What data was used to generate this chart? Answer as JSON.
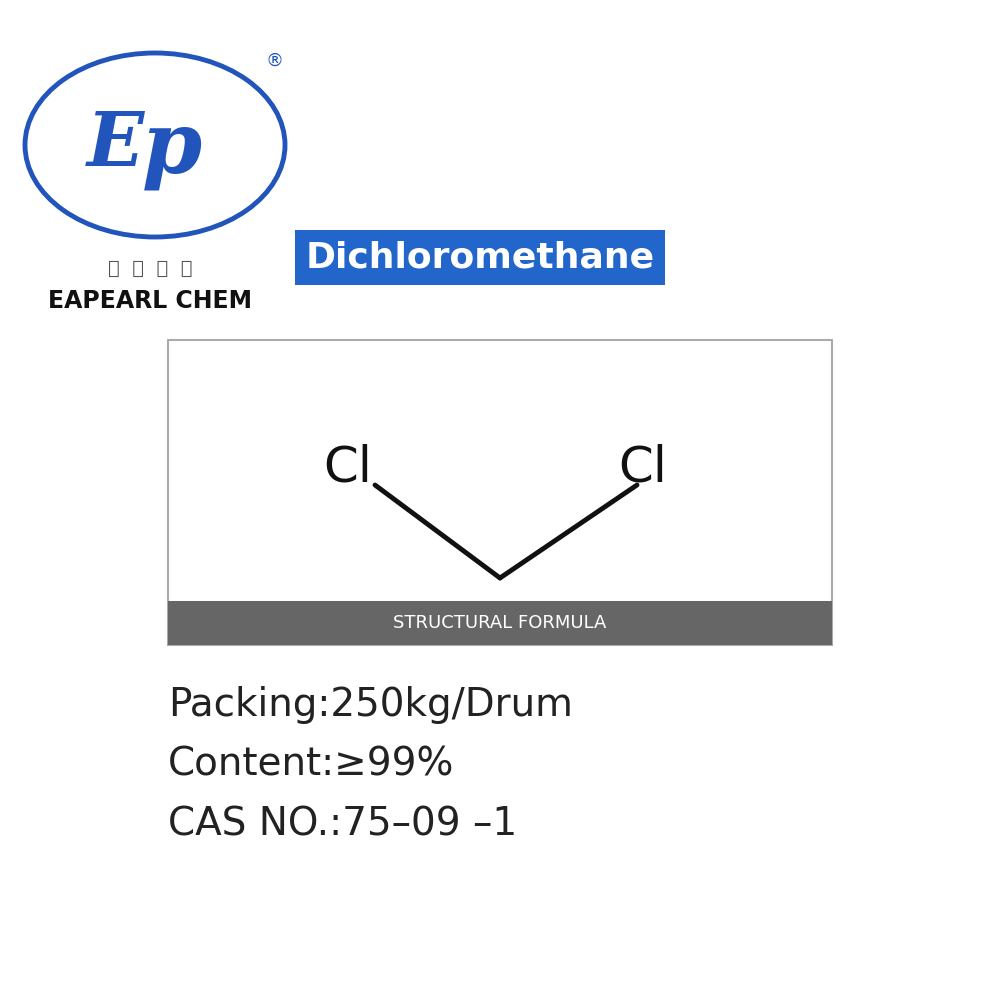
{
  "bg_color": "#ffffff",
  "logo_ellipse_color": "#2255bb",
  "logo_text_color": "#2255bb",
  "chinese_text": "易  普  化  工",
  "brand_name": "EAPEARL CHEM",
  "title_text": "Dichloromethane",
  "title_bg_color": "#2266cc",
  "title_text_color": "#ffffff",
  "struct_box_color": "#dddddd",
  "struct_label_bg": "#666666",
  "struct_label_text": "STRUCTURAL FORMULA",
  "struct_label_text_color": "#ffffff",
  "cl_left_label": "Cl",
  "cl_right_label": "Cl",
  "bond_color": "#111111",
  "info_lines": [
    "Packing:250kg/Drum",
    "Content:≥99%",
    "CAS NO.:75–09 –1"
  ],
  "info_text_color": "#222222"
}
